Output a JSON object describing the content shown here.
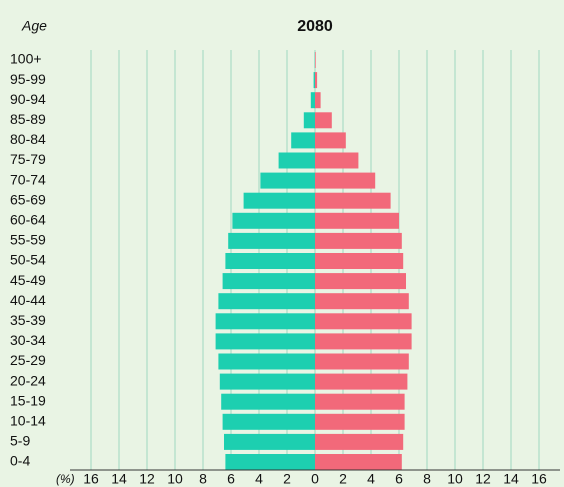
{
  "chart_data": {
    "type": "pyramid",
    "title": "2080",
    "y_label": "Age",
    "x_label": "(%)",
    "categories": [
      "0-4",
      "5-9",
      "10-14",
      "15-19",
      "20-24",
      "25-29",
      "30-34",
      "35-39",
      "40-44",
      "45-49",
      "50-54",
      "55-59",
      "60-64",
      "65-69",
      "70-74",
      "75-79",
      "80-84",
      "85-89",
      "90-94",
      "95-99",
      "100+"
    ],
    "series": [
      {
        "color": "#1dcfb0",
        "side": "left",
        "values": [
          6.4,
          6.5,
          6.6,
          6.7,
          6.8,
          6.9,
          7.1,
          7.1,
          6.9,
          6.6,
          6.4,
          6.2,
          5.9,
          5.1,
          3.9,
          2.6,
          1.7,
          0.8,
          0.3,
          0.1,
          0.02
        ]
      },
      {
        "color": "#f2697a",
        "side": "right",
        "values": [
          6.2,
          6.3,
          6.4,
          6.4,
          6.6,
          6.7,
          6.9,
          6.9,
          6.7,
          6.5,
          6.3,
          6.2,
          6.0,
          5.4,
          4.3,
          3.1,
          2.2,
          1.2,
          0.4,
          0.15,
          0.05
        ]
      }
    ],
    "xlim": [
      -17.5,
      17.5
    ],
    "xticks": [
      {
        "value": -16,
        "label": "16"
      },
      {
        "value": -14,
        "label": "14"
      },
      {
        "value": -12,
        "label": "12"
      },
      {
        "value": -10,
        "label": "10"
      },
      {
        "value": -8,
        "label": "8"
      },
      {
        "value": -6,
        "label": "6"
      },
      {
        "value": -4,
        "label": "4"
      },
      {
        "value": -2,
        "label": "2"
      },
      0,
      2,
      4,
      6,
      8,
      10,
      12,
      14,
      16
    ],
    "grid": true
  }
}
